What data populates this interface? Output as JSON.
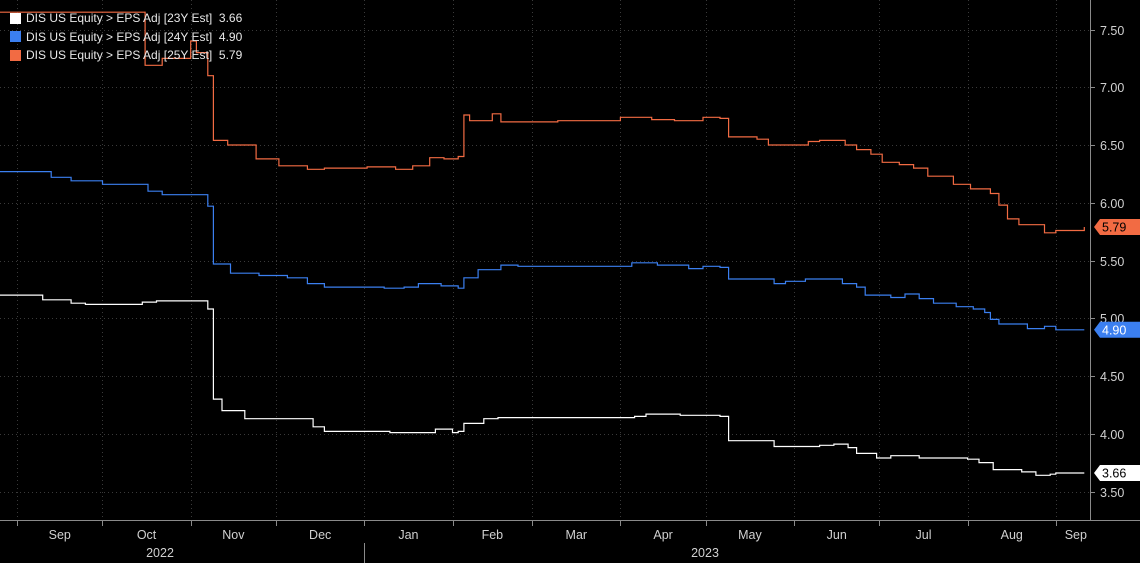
{
  "chart_data": {
    "type": "line",
    "title": "",
    "xlabel": "",
    "ylabel": "",
    "ylim": [
      3.25,
      7.65
    ],
    "xlim": [
      "2022-08-26",
      "2023-09-13"
    ],
    "y_ticks": [
      "3.50",
      "4.00",
      "4.50",
      "5.00",
      "5.50",
      "6.00",
      "6.50",
      "7.00",
      "7.50"
    ],
    "x_month_ticks": [
      "Sep",
      "Oct",
      "Nov",
      "Dec",
      "Jan",
      "Feb",
      "Mar",
      "Apr",
      "May",
      "Jun",
      "Jul",
      "Aug",
      "Sep"
    ],
    "x_year_labels": [
      "2022",
      "2023"
    ],
    "grid": true,
    "legend_position": "top-left",
    "series": [
      {
        "name": "DIS US Equity > EPS Adj [23Y Est]",
        "last_value": "3.66",
        "color": "#ffffff",
        "points": [
          [
            "2022-08-26",
            5.2
          ],
          [
            "2022-09-07",
            5.2
          ],
          [
            "2022-09-10",
            5.16
          ],
          [
            "2022-09-20",
            5.13
          ],
          [
            "2022-09-25",
            5.12
          ],
          [
            "2022-10-05",
            5.12
          ],
          [
            "2022-10-15",
            5.14
          ],
          [
            "2022-10-20",
            5.15
          ],
          [
            "2022-11-02",
            5.15
          ],
          [
            "2022-11-07",
            5.08
          ],
          [
            "2022-11-09",
            4.3
          ],
          [
            "2022-11-12",
            4.2
          ],
          [
            "2022-11-20",
            4.13
          ],
          [
            "2022-12-10",
            4.13
          ],
          [
            "2022-12-14",
            4.06
          ],
          [
            "2022-12-18",
            4.02
          ],
          [
            "2023-01-10",
            4.01
          ],
          [
            "2023-01-26",
            4.04
          ],
          [
            "2023-02-01",
            4.01
          ],
          [
            "2023-02-03",
            4.02
          ],
          [
            "2023-02-05",
            4.09
          ],
          [
            "2023-02-12",
            4.13
          ],
          [
            "2023-02-17",
            4.14
          ],
          [
            "2023-04-06",
            4.15
          ],
          [
            "2023-04-10",
            4.17
          ],
          [
            "2023-04-22",
            4.16
          ],
          [
            "2023-04-30",
            4.16
          ],
          [
            "2023-05-06",
            4.15
          ],
          [
            "2023-05-09",
            3.94
          ],
          [
            "2023-05-25",
            3.89
          ],
          [
            "2023-06-10",
            3.9
          ],
          [
            "2023-06-15",
            3.91
          ],
          [
            "2023-06-20",
            3.88
          ],
          [
            "2023-06-23",
            3.83
          ],
          [
            "2023-06-30",
            3.79
          ],
          [
            "2023-07-05",
            3.81
          ],
          [
            "2023-07-15",
            3.79
          ],
          [
            "2023-08-01",
            3.78
          ],
          [
            "2023-08-05",
            3.75
          ],
          [
            "2023-08-10",
            3.69
          ],
          [
            "2023-08-20",
            3.67
          ],
          [
            "2023-08-25",
            3.64
          ],
          [
            "2023-08-30",
            3.65
          ],
          [
            "2023-09-01",
            3.66
          ],
          [
            "2023-09-11",
            3.66
          ]
        ]
      },
      {
        "name": "DIS US Equity > EPS Adj [24Y Est]",
        "last_value": "4.90",
        "color": "#3b7ff0",
        "points": [
          [
            "2022-08-26",
            6.27
          ],
          [
            "2022-09-09",
            6.27
          ],
          [
            "2022-09-13",
            6.22
          ],
          [
            "2022-09-20",
            6.19
          ],
          [
            "2022-10-01",
            6.16
          ],
          [
            "2022-10-10",
            6.16
          ],
          [
            "2022-10-17",
            6.1
          ],
          [
            "2022-10-22",
            6.07
          ],
          [
            "2022-11-03",
            6.07
          ],
          [
            "2022-11-07",
            5.97
          ],
          [
            "2022-11-09",
            5.47
          ],
          [
            "2022-11-15",
            5.39
          ],
          [
            "2022-11-25",
            5.37
          ],
          [
            "2022-12-05",
            5.35
          ],
          [
            "2022-12-12",
            5.3
          ],
          [
            "2022-12-18",
            5.27
          ],
          [
            "2023-01-08",
            5.26
          ],
          [
            "2023-01-15",
            5.27
          ],
          [
            "2023-01-20",
            5.3
          ],
          [
            "2023-01-28",
            5.28
          ],
          [
            "2023-02-03",
            5.26
          ],
          [
            "2023-02-05",
            5.35
          ],
          [
            "2023-02-10",
            5.42
          ],
          [
            "2023-02-18",
            5.46
          ],
          [
            "2023-02-24",
            5.45
          ],
          [
            "2023-04-02",
            5.45
          ],
          [
            "2023-04-05",
            5.48
          ],
          [
            "2023-04-14",
            5.46
          ],
          [
            "2023-04-25",
            5.43
          ],
          [
            "2023-04-30",
            5.45
          ],
          [
            "2023-05-06",
            5.44
          ],
          [
            "2023-05-09",
            5.34
          ],
          [
            "2023-05-25",
            5.3
          ],
          [
            "2023-05-29",
            5.32
          ],
          [
            "2023-06-05",
            5.34
          ],
          [
            "2023-06-18",
            5.3
          ],
          [
            "2023-06-23",
            5.27
          ],
          [
            "2023-06-26",
            5.2
          ],
          [
            "2023-07-05",
            5.18
          ],
          [
            "2023-07-10",
            5.21
          ],
          [
            "2023-07-15",
            5.17
          ],
          [
            "2023-07-20",
            5.13
          ],
          [
            "2023-07-28",
            5.1
          ],
          [
            "2023-08-03",
            5.08
          ],
          [
            "2023-08-07",
            5.05
          ],
          [
            "2023-08-09",
            4.99
          ],
          [
            "2023-08-12",
            4.95
          ],
          [
            "2023-08-22",
            4.91
          ],
          [
            "2023-08-28",
            4.93
          ],
          [
            "2023-09-01",
            4.9
          ],
          [
            "2023-09-11",
            4.9
          ]
        ]
      },
      {
        "name": "DIS US Equity > EPS Adj [25Y Est]",
        "last_value": "5.79",
        "color": "#f26b43",
        "points": [
          [
            "2022-08-26",
            7.65
          ],
          [
            "2022-10-15",
            7.65
          ],
          [
            "2022-10-16",
            7.19
          ],
          [
            "2022-10-22",
            7.25
          ],
          [
            "2022-11-01",
            7.4
          ],
          [
            "2022-11-03",
            7.3
          ],
          [
            "2022-11-07",
            7.1
          ],
          [
            "2022-11-09",
            6.54
          ],
          [
            "2022-11-14",
            6.5
          ],
          [
            "2022-11-24",
            6.38
          ],
          [
            "2022-12-02",
            6.32
          ],
          [
            "2022-12-12",
            6.29
          ],
          [
            "2022-12-18",
            6.3
          ],
          [
            "2023-01-02",
            6.31
          ],
          [
            "2023-01-12",
            6.29
          ],
          [
            "2023-01-18",
            6.32
          ],
          [
            "2023-01-24",
            6.39
          ],
          [
            "2023-01-29",
            6.38
          ],
          [
            "2023-02-03",
            6.4
          ],
          [
            "2023-02-05",
            6.76
          ],
          [
            "2023-02-07",
            6.71
          ],
          [
            "2023-02-15",
            6.77
          ],
          [
            "2023-02-18",
            6.7
          ],
          [
            "2023-03-10",
            6.71
          ],
          [
            "2023-03-29",
            6.71
          ],
          [
            "2023-04-01",
            6.74
          ],
          [
            "2023-04-12",
            6.72
          ],
          [
            "2023-04-20",
            6.71
          ],
          [
            "2023-04-30",
            6.74
          ],
          [
            "2023-05-06",
            6.73
          ],
          [
            "2023-05-09",
            6.57
          ],
          [
            "2023-05-19",
            6.55
          ],
          [
            "2023-05-23",
            6.5
          ],
          [
            "2023-06-06",
            6.53
          ],
          [
            "2023-06-10",
            6.54
          ],
          [
            "2023-06-19",
            6.5
          ],
          [
            "2023-06-23",
            6.46
          ],
          [
            "2023-06-28",
            6.42
          ],
          [
            "2023-07-02",
            6.35
          ],
          [
            "2023-07-08",
            6.33
          ],
          [
            "2023-07-13",
            6.3
          ],
          [
            "2023-07-18",
            6.23
          ],
          [
            "2023-07-27",
            6.16
          ],
          [
            "2023-08-02",
            6.12
          ],
          [
            "2023-08-09",
            6.08
          ],
          [
            "2023-08-12",
            5.98
          ],
          [
            "2023-08-15",
            5.86
          ],
          [
            "2023-08-19",
            5.81
          ],
          [
            "2023-08-28",
            5.74
          ],
          [
            "2023-09-01",
            5.76
          ],
          [
            "2023-09-11",
            5.79
          ]
        ]
      }
    ]
  },
  "colors": {
    "background": "#000000",
    "grid": "#3a3a3a",
    "axis_text": "#d0d0d0"
  }
}
